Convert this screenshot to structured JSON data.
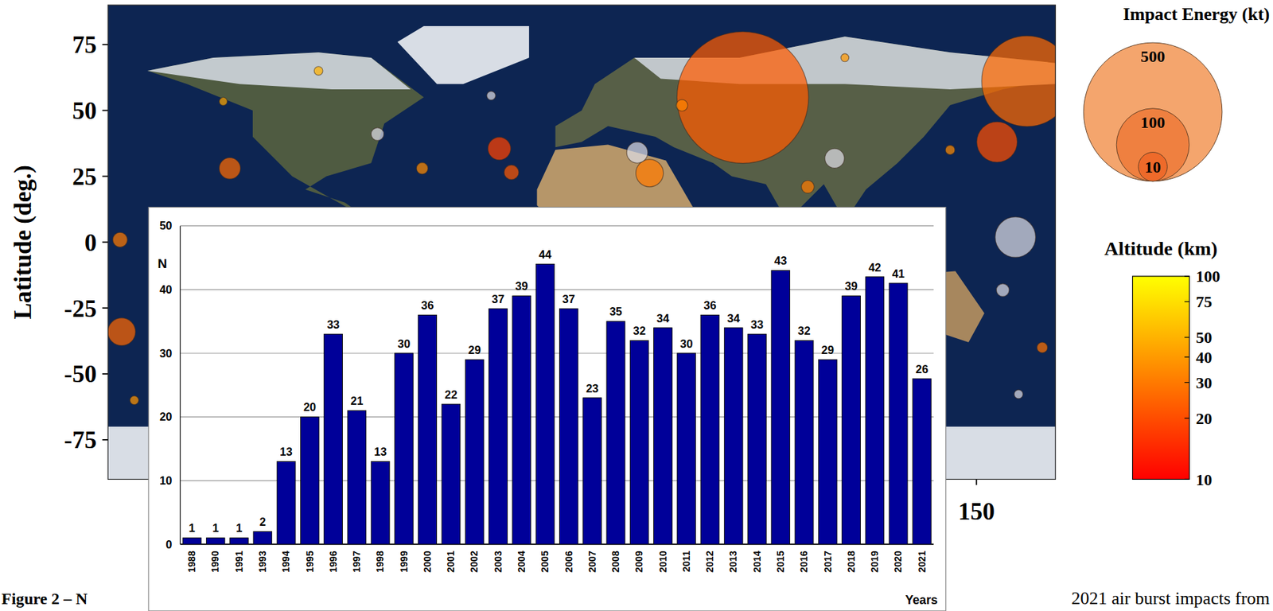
{
  "chart_data": [
    {
      "type": "scatter",
      "y_label": "Latitude (deg.)",
      "x": [
        61.2,
        169.2,
        157.8,
        164.8,
        25.8,
        -174.8,
        -31.3,
        -133.7,
        21.1,
        96.1,
        -26.7,
        -175.4,
        -77.6,
        85.9,
        160.0,
        -60.6,
        38.1,
        166.0,
        -34.4,
        -136.2,
        100.0,
        -100.0,
        140.0,
        175.0,
        -170.0
      ],
      "values": [
        54.9,
        61.1,
        38.0,
        1.9,
        26.2,
        -34.0,
        35.5,
        28.0,
        34.0,
        31.8,
        26.5,
        0.9,
        41.0,
        21.0,
        -18.2,
        28.0,
        51.9,
        -57.7,
        55.6,
        53.4,
        70.0,
        65.0,
        35.0,
        -40.0,
        -60.0
      ],
      "sizes": [
        440,
        173,
        23,
        23,
        8.8,
        8.9,
        5.5,
        4.6,
        4.5,
        3.7,
        1.8,
        1.8,
        1.3,
        1.3,
        1.3,
        1.0,
        1.0,
        0.5,
        0.5,
        0.4,
        0.4,
        0.5,
        0.6,
        0.8,
        0.5
      ],
      "color_values": [
        23,
        26,
        20,
        null,
        30,
        25,
        18,
        26,
        null,
        null,
        22,
        30,
        null,
        30,
        null,
        35,
        33,
        null,
        null,
        45,
        40,
        50,
        35,
        28,
        38
      ],
      "xlim": [
        -180,
        180
      ],
      "ylim": [
        -90,
        90
      ],
      "xticks": [
        150
      ],
      "yticks": [
        75,
        50,
        25,
        0,
        -25,
        -50,
        -75
      ],
      "size_title": "Impact Energy (kt)",
      "size_ticks": [
        500,
        100,
        10
      ],
      "color_title": "Altitude (km)",
      "color_range": [
        10,
        100
      ],
      "color_ticks": [
        100,
        75,
        50,
        40,
        30,
        20,
        10
      ]
    },
    {
      "type": "bar",
      "y_label": "N",
      "x_label": "Years",
      "categories": [
        "1988",
        "1990",
        "1991",
        "1993",
        "1994",
        "1995",
        "1996",
        "1997",
        "1998",
        "1999",
        "2000",
        "2001",
        "2002",
        "2003",
        "2004",
        "2005",
        "2006",
        "2007",
        "2008",
        "2009",
        "2010",
        "2011",
        "2012",
        "2013",
        "2014",
        "2015",
        "2016",
        "2017",
        "2018",
        "2019",
        "2020",
        "2021"
      ],
      "values": [
        1,
        1,
        1,
        2,
        13,
        20,
        33,
        21,
        13,
        30,
        36,
        22,
        29,
        37,
        39,
        44,
        37,
        23,
        35,
        32,
        34,
        30,
        36,
        34,
        33,
        43,
        32,
        29,
        39,
        42,
        41,
        26
      ],
      "color": "#000099",
      "ylim": [
        0,
        50
      ],
      "yticks": [
        0,
        10,
        20,
        30,
        40,
        50
      ],
      "grid": true,
      "data_labels": true
    }
  ],
  "caption": [
    "Figure 2 – N",
    "2021 air burst impacts from"
  ]
}
